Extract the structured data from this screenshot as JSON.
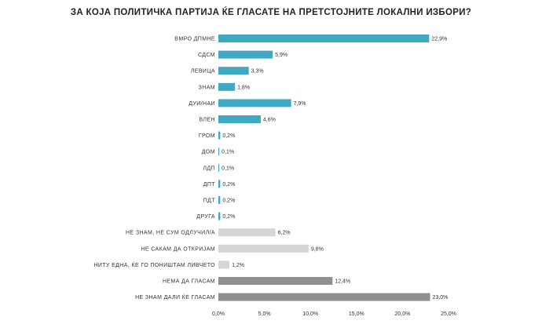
{
  "chart_data": {
    "type": "bar",
    "orientation": "horizontal",
    "title": "ЗА КОЈА ПОЛИТИЧКА ПАРТИЈА ЌЕ ГЛАСАТЕ НА ПРЕТСТОЈНИТЕ ЛОКАЛНИ ИЗБОРИ?",
    "categories": [
      "ВМРО ДПМНЕ",
      "СДСМ",
      "ЛЕВИЦА",
      "ЗНАМ",
      "ДУИ/НАИ",
      "ВЛЕН",
      "ГРОМ",
      "ДОМ",
      "ЛДП",
      "ДПТ",
      "ПДТ",
      "ДРУГА",
      "НЕ ЗНАМ, НЕ СУМ ОДЛУЧИЛ/А",
      "НЕ САКАМ ДА ОТКРИЈАМ",
      "НИТУ ЕДНА, ЌЕ ГО ПОНИШТАМ ЛИВЧЕТО",
      "НЕМА ДА ГЛАСАМ",
      "НЕ ЗНАМ ДАЛИ ЌЕ ГЛАСАМ"
    ],
    "values": [
      22.9,
      5.9,
      3.3,
      1.8,
      7.9,
      4.6,
      0.2,
      0.1,
      0.1,
      0.2,
      0.2,
      0.2,
      6.2,
      9.8,
      1.2,
      12.4,
      23.0
    ],
    "value_labels": [
      "22,9%",
      "5,9%",
      "3,3%",
      "1,8%",
      "7,9%",
      "4,6%",
      "0,2%",
      "0,1%",
      "0,1%",
      "0,2%",
      "0,2%",
      "0,2%",
      "6,2%",
      "9,8%",
      "1,2%",
      "12,4%",
      "23,0%"
    ],
    "bar_colors": [
      "#3fa9c3",
      "#3fa9c3",
      "#3fa9c3",
      "#3fa9c3",
      "#3fa9c3",
      "#3fa9c3",
      "#3fa9c3",
      "#3fa9c3",
      "#3fa9c3",
      "#3fa9c3",
      "#3fa9c3",
      "#3fa9c3",
      "#d6d6d6",
      "#d6d6d6",
      "#d6d6d6",
      "#8f8f8f",
      "#8f8f8f"
    ],
    "xlim": [
      0,
      25
    ],
    "x_ticks": [
      0,
      5,
      10,
      15,
      20,
      25
    ],
    "x_tick_labels": [
      "0,0%",
      "5,0%",
      "10,0%",
      "15,0%",
      "20,0%",
      "25,0%"
    ],
    "grid": false,
    "legend": "none"
  }
}
